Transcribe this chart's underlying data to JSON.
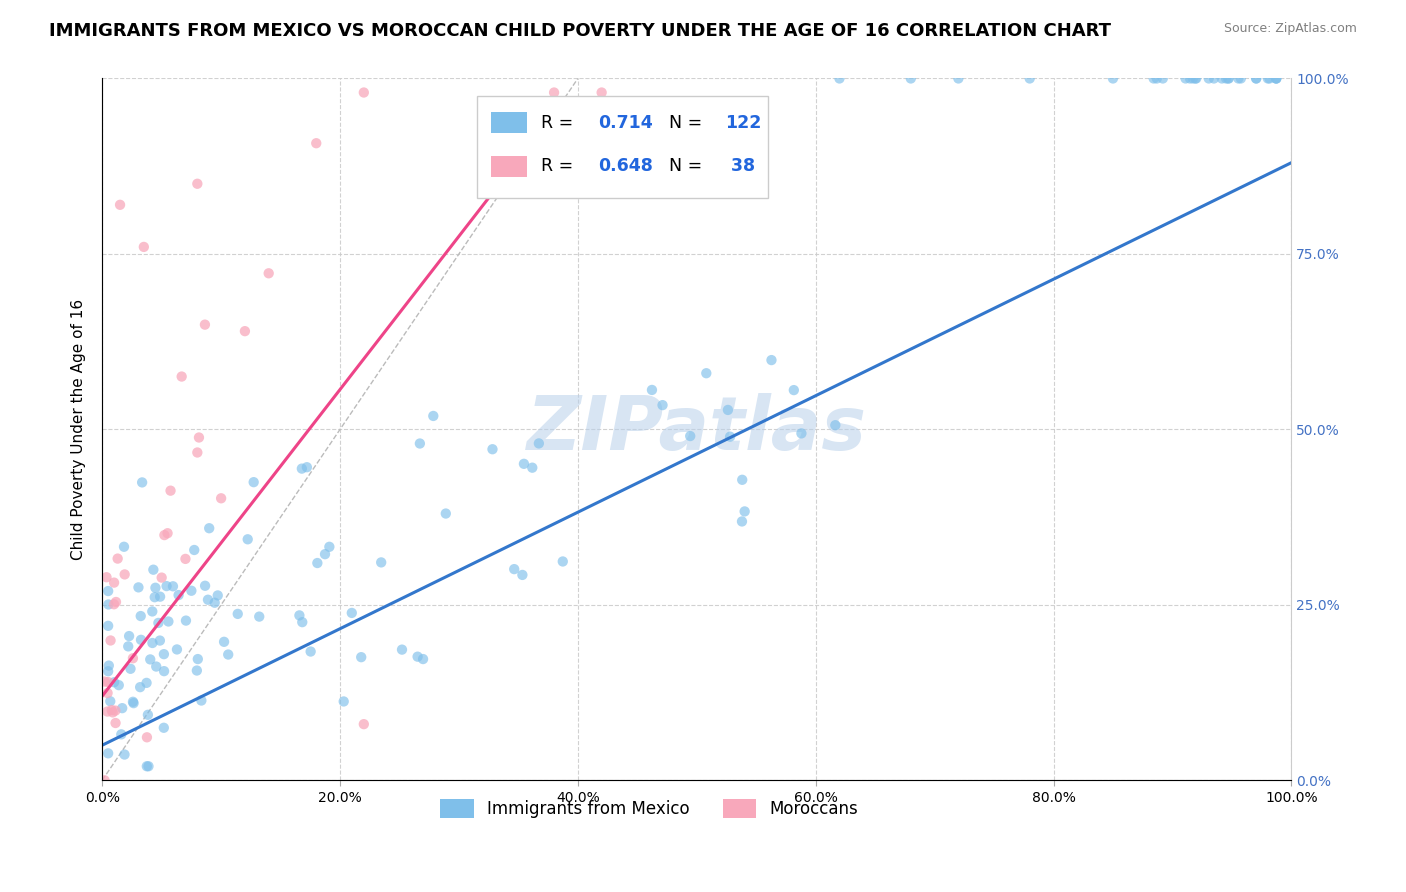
{
  "title": "IMMIGRANTS FROM MEXICO VS MOROCCAN CHILD POVERTY UNDER THE AGE OF 16 CORRELATION CHART",
  "source": "Source: ZipAtlas.com",
  "ylabel": "Child Poverty Under the Age of 16",
  "xlim": [
    0,
    1
  ],
  "ylim": [
    0,
    1
  ],
  "xtick_labels": [
    "0.0%",
    "20.0%",
    "40.0%",
    "60.0%",
    "80.0%",
    "100.0%"
  ],
  "ytick_labels_right": [
    "0.0%",
    "25.0%",
    "50.0%",
    "75.0%",
    "100.0%"
  ],
  "watermark": "ZIPatlas",
  "blue_color": "#7fbfea",
  "pink_color": "#f8a8bb",
  "blue_line_color": "#3377cc",
  "pink_line_color": "#ee4488",
  "grid_color": "#cccccc",
  "title_fontsize": 13,
  "axis_label_fontsize": 11,
  "tick_fontsize": 10,
  "right_tick_color": "#4472c4"
}
